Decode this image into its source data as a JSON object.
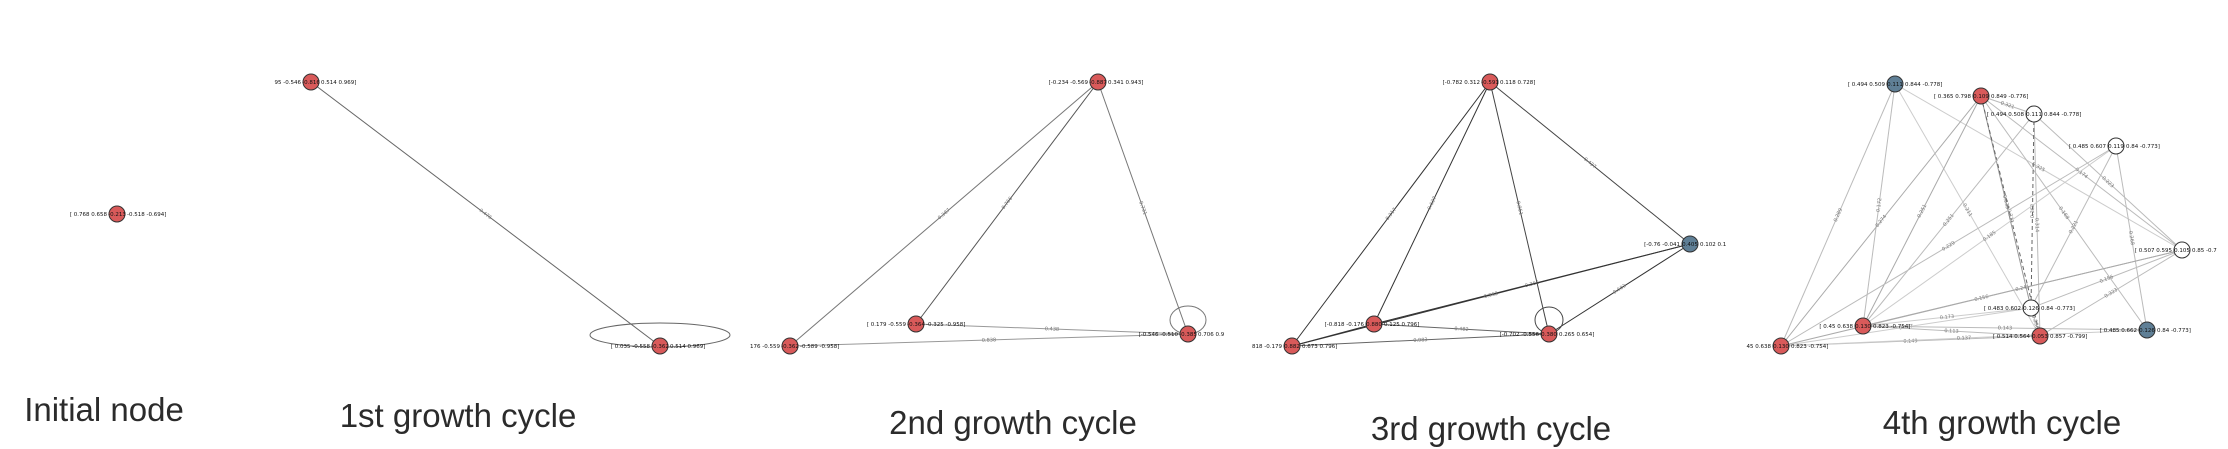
{
  "panels": [
    {
      "id": "initial",
      "title": "Initial node",
      "nodes": [
        {
          "id": "n0",
          "color": "red",
          "left_text": "[ 0.768  0.658",
          "mid_text": "-0.213",
          "right_text": "-0.518 -0.694]"
        }
      ],
      "edges": []
    },
    {
      "id": "cycle1",
      "title": "1st growth cycle",
      "nodes": [
        {
          "id": "a",
          "color": "red",
          "left_text": "95 -0.546",
          "mid_text": "-0.816",
          "right_text": "0.514  0.969]"
        },
        {
          "id": "b",
          "color": "red",
          "left_text": "[ 0.035 -0.558",
          "mid_text": "-0.362",
          "right_text": "0.514  0.969]"
        }
      ],
      "edges": [
        {
          "from": "a",
          "to": "b",
          "label": "0.476",
          "shade": "#666"
        },
        {
          "from": "b",
          "to": "b",
          "label": "",
          "shade": "#666",
          "loop": "wide"
        }
      ]
    },
    {
      "id": "cycle2",
      "title": "2nd growth cycle",
      "nodes": [
        {
          "id": "t",
          "color": "red",
          "left_text": "[-0.234 -0.569",
          "mid_text": "-0.887",
          "right_text": "0.341  0.943]"
        },
        {
          "id": "m",
          "color": "red",
          "left_text": "[ 0.179 -0.559",
          "mid_text": "-0.364",
          "right_text": "-0.325 -0.958]"
        },
        {
          "id": "l",
          "color": "red",
          "left_text": "176 -0.559",
          "mid_text": "-0.362",
          "right_text": "-0.589 -0.958]"
        },
        {
          "id": "r",
          "color": "red",
          "left_text": "[-0.546 -0.510",
          "mid_text": "-0.385",
          "right_text": "0.706  0.9"
        }
      ],
      "edges": [
        {
          "from": "t",
          "to": "l",
          "label": "0.387",
          "shade": "#777"
        },
        {
          "from": "t",
          "to": "m",
          "label": "0.766",
          "shade": "#555"
        },
        {
          "from": "t",
          "to": "r",
          "label": "0.731",
          "shade": "#777"
        },
        {
          "from": "m",
          "to": "r",
          "label": "0.438",
          "shade": "#999"
        },
        {
          "from": "l",
          "to": "r",
          "label": "0.838",
          "shade": "#999"
        },
        {
          "from": "r",
          "to": "r",
          "label": "",
          "shade": "#777",
          "loop": "small"
        }
      ]
    },
    {
      "id": "cycle3",
      "title": "3rd growth cycle",
      "nodes": [
        {
          "id": "t",
          "color": "red",
          "left_text": "[-0.782  0.312",
          "mid_text": "-0.591",
          "right_text": "0.118  0.728]"
        },
        {
          "id": "b",
          "color": "blue",
          "left_text": "[-0.76  -0.041",
          "mid_text": "0.405",
          "right_text": "0.102  0.1"
        },
        {
          "id": "m",
          "color": "red",
          "left_text": "[-0.818 -0.176",
          "mid_text": "0.880",
          "right_text": "0.125  0.796]"
        },
        {
          "id": "l",
          "color": "red",
          "left_text": "818 -0.179",
          "mid_text": "0.882",
          "right_text": "0.673  0.796]"
        },
        {
          "id": "r",
          "color": "red",
          "left_text": "[-0.702 -0.556",
          "mid_text": "0.380",
          "right_text": "0.265  0.654]"
        }
      ],
      "edges": [
        {
          "from": "t",
          "to": "l",
          "label": "0.317",
          "shade": "#333"
        },
        {
          "from": "t",
          "to": "m",
          "label": "0.627",
          "shade": "#333"
        },
        {
          "from": "t",
          "to": "r",
          "label": "0.951",
          "shade": "#444"
        },
        {
          "from": "t",
          "to": "b",
          "label": "0.437",
          "shade": "#444"
        },
        {
          "from": "m",
          "to": "b",
          "label": "0.366",
          "shade": "#333"
        },
        {
          "from": "l",
          "to": "b",
          "label": "0.362",
          "shade": "#333"
        },
        {
          "from": "m",
          "to": "r",
          "label": "0.482",
          "shade": "#666"
        },
        {
          "from": "l",
          "to": "r",
          "label": "0.983",
          "shade": "#666"
        },
        {
          "from": "l",
          "to": "m",
          "label": "",
          "shade": "#333"
        },
        {
          "from": "r",
          "to": "b",
          "label": "0.603",
          "shade": "#333"
        },
        {
          "from": "r",
          "to": "r",
          "label": "",
          "shade": "#444",
          "loop": "small"
        }
      ]
    },
    {
      "id": "cycle4",
      "title": "4th growth cycle",
      "nodes": [
        {
          "id": "p1",
          "color": "blue",
          "left_text": "[ 0.494  0.509",
          "mid_text": "0.111",
          "right_text": "0.844 -0.778]"
        },
        {
          "id": "p2",
          "color": "red",
          "left_text": "[ 0.365  0.798",
          "mid_text": "0.109",
          "right_text": "0.849 -0.776]"
        },
        {
          "id": "p3",
          "color": "white",
          "left_text": "[ 0.494  0.508",
          "mid_text": "0.111",
          "right_text": "0.844 -0.778]"
        },
        {
          "id": "p4",
          "color": "white",
          "left_text": "[ 0.485  0.607",
          "mid_text": "0.119",
          "right_text": "0.84  -0.773]"
        },
        {
          "id": "p5",
          "color": "white",
          "left_text": "[ 0.507  0.595",
          "mid_text": "0.105",
          "right_text": "0.85 -0.7"
        },
        {
          "id": "p6",
          "color": "white",
          "left_text": "[ 0.483  0.602",
          "mid_text": "0.126",
          "right_text": "0.84  -0.773]"
        },
        {
          "id": "p7",
          "color": "red",
          "left_text": "[ 0.45   0.638",
          "mid_text": "0.130",
          "right_text": "0.823 -0.754]"
        },
        {
          "id": "p8",
          "color": "red",
          "left_text": "[ 0.514  0.564",
          "mid_text": "0.053",
          "right_text": "0.857 -0.799]"
        },
        {
          "id": "p9",
          "color": "blue",
          "left_text": "[ 0.485  0.662",
          "mid_text": "0.126",
          "right_text": "0.84  -0.773]"
        },
        {
          "id": "p10",
          "color": "red",
          "left_text": "45   0.638",
          "mid_text": "0.130",
          "right_text": "0.823 -0.754]"
        }
      ],
      "edges": [
        {
          "from": "p1",
          "to": "p10",
          "label": "0.289",
          "shade": "#bbb"
        },
        {
          "from": "p1",
          "to": "p7",
          "label": "0.172",
          "shade": "#bbb"
        },
        {
          "from": "p1",
          "to": "p8",
          "label": "0.211",
          "shade": "#ccc"
        },
        {
          "from": "p1",
          "to": "p5",
          "label": "0.325",
          "shade": "#ccc"
        },
        {
          "from": "p2",
          "to": "p3",
          "label": "0.321",
          "shade": "#bbb"
        },
        {
          "from": "p2",
          "to": "p10",
          "label": "0.274",
          "shade": "#aaa"
        },
        {
          "from": "p2",
          "to": "p7",
          "label": "0.251",
          "shade": "#aaa"
        },
        {
          "from": "p2",
          "to": "p6",
          "label": "0.335",
          "shade": "#999"
        },
        {
          "from": "p2",
          "to": "p9",
          "label": "0.168",
          "shade": "#bbb"
        },
        {
          "from": "p2",
          "to": "p5",
          "label": "0.174",
          "shade": "#bbb"
        },
        {
          "from": "p2",
          "to": "p8",
          "label": "0.321",
          "shade": "#666",
          "dash": true
        },
        {
          "from": "p3",
          "to": "p8",
          "label": "0.314",
          "shade": "#bbb"
        },
        {
          "from": "p3",
          "to": "p5",
          "label": "0.223",
          "shade": "#bbb"
        },
        {
          "from": "p3",
          "to": "p7",
          "label": "0.251",
          "shade": "#bbb"
        },
        {
          "from": "p3",
          "to": "p6",
          "label": "0.368",
          "shade": "#666",
          "dash": true
        },
        {
          "from": "p4",
          "to": "p10",
          "label": "0.229",
          "shade": "#bbb"
        },
        {
          "from": "p4",
          "to": "p6",
          "label": "0.221",
          "shade": "#bbb"
        },
        {
          "from": "p4",
          "to": "p9",
          "label": "0.268",
          "shade": "#bbb"
        },
        {
          "from": "p4",
          "to": "p7",
          "label": "0.185",
          "shade": "#ccc"
        },
        {
          "from": "p5",
          "to": "p10",
          "label": "0.156",
          "shade": "#aaa"
        },
        {
          "from": "p5",
          "to": "p7",
          "label": "0.241",
          "shade": "#aaa"
        },
        {
          "from": "p5",
          "to": "p6",
          "label": "0.156",
          "shade": "#bbb"
        },
        {
          "from": "p5",
          "to": "p8",
          "label": "0.323",
          "shade": "#bbb"
        },
        {
          "from": "p6",
          "to": "p7",
          "label": "0.173",
          "shade": "#ccc"
        },
        {
          "from": "p6",
          "to": "p10",
          "label": "0.127",
          "shade": "#ccc"
        },
        {
          "from": "p6",
          "to": "p8",
          "label": "0.236",
          "shade": "#bbb"
        },
        {
          "from": "p7",
          "to": "p8",
          "label": "0.113",
          "shade": "#bbb"
        },
        {
          "from": "p7",
          "to": "p9",
          "label": "0.143",
          "shade": "#bbb"
        },
        {
          "from": "p10",
          "to": "p8",
          "label": "0.149",
          "shade": "#bbb"
        },
        {
          "from": "p10",
          "to": "p9",
          "label": "0.137",
          "shade": "#ccc"
        }
      ]
    }
  ],
  "colors": {
    "red": "#d95a5a",
    "blue": "#5f7f96",
    "white": "#ffffff",
    "node_stroke": "#333333",
    "title": "#2b2b2b"
  }
}
